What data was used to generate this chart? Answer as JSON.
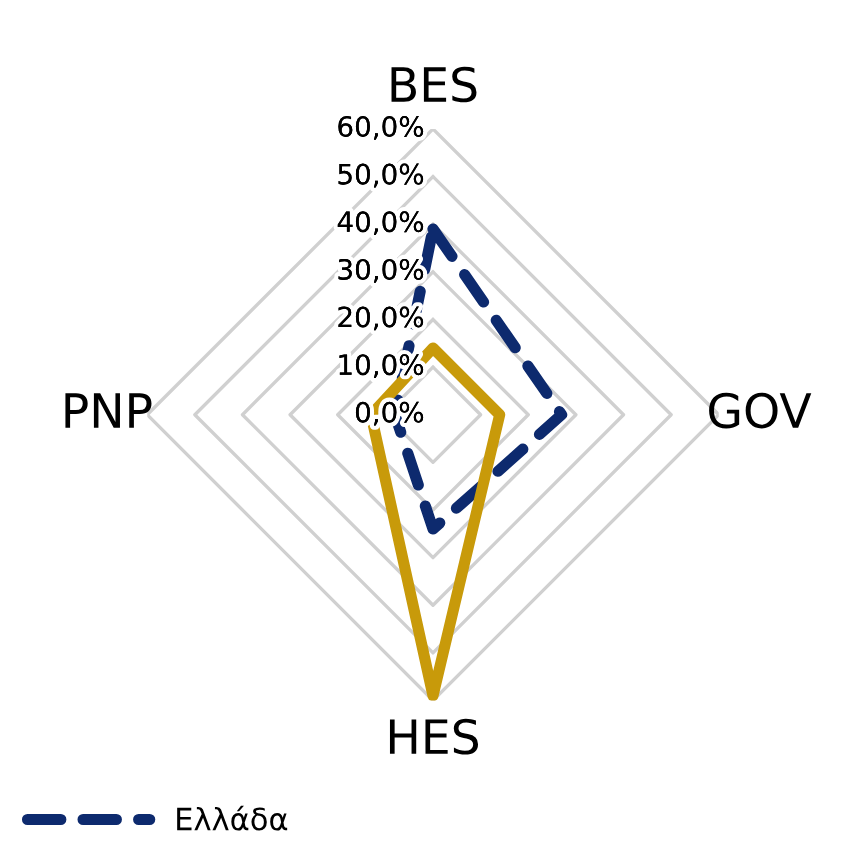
{
  "chart_data": {
    "type": "radar",
    "categories": [
      "BES",
      "GOV",
      "HES",
      "PNP"
    ],
    "ylim": [
      0,
      60
    ],
    "yticks": [
      {
        "value": 0,
        "label": "0,0%"
      },
      {
        "value": 10,
        "label": "10,0%"
      },
      {
        "value": 20,
        "label": "20,0%"
      },
      {
        "value": 30,
        "label": "30,0%"
      },
      {
        "value": 40,
        "label": "40,0%"
      },
      {
        "value": 50,
        "label": "50,0%"
      },
      {
        "value": 60,
        "label": "60,0%"
      }
    ],
    "grid": true,
    "legend": "bottom left",
    "series": [
      {
        "name": "Ελλάδα",
        "color": "#0d2a6e",
        "line_style": "dashed",
        "values": [
          39,
          27,
          24,
          8
        ]
      },
      {
        "color": "#c89a0a",
        "line_style": "solid",
        "values": [
          14,
          14,
          59,
          13
        ]
      }
    ]
  }
}
